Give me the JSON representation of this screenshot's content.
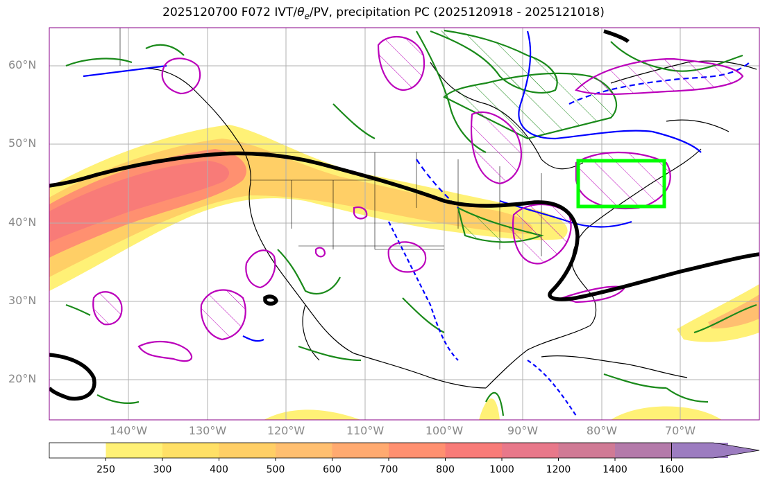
{
  "title": {
    "prefix": "2025120700 F072 IVT/",
    "theta": "θ",
    "theta_sub": "e",
    "suffix": "/PV, precipitation PC (2025120918 - 2025121018)"
  },
  "lat_labels": [
    "60°N",
    "50°N",
    "40°N",
    "30°N",
    "20°N"
  ],
  "lon_labels": [
    "140°W",
    "130°W",
    "120°W",
    "110°W",
    "100°W",
    "90°W",
    "80°W",
    "70°W"
  ],
  "colorbar": {
    "levels": [
      "250",
      "300",
      "400",
      "500",
      "600",
      "700",
      "800",
      "1000",
      "1200",
      "1400",
      "1600"
    ],
    "colors": [
      "#ffffff",
      "#fff176",
      "#ffe066",
      "#ffcf66",
      "#ffbf70",
      "#ffaa70",
      "#ff9070",
      "#f87b78",
      "#e8788a",
      "#d07a95",
      "#b47aaa",
      "#9c7cc0"
    ]
  },
  "legend_colors": {
    "ivt_shading_base": "#fff176",
    "ivt_shading_peak": "#f07a78",
    "theta_e_contour": "#1a8a1a",
    "pv_contour": "#0000ff",
    "precip_contour": "#bb00bb",
    "jet_line": "#000000",
    "target_box": "#00ff00"
  }
}
